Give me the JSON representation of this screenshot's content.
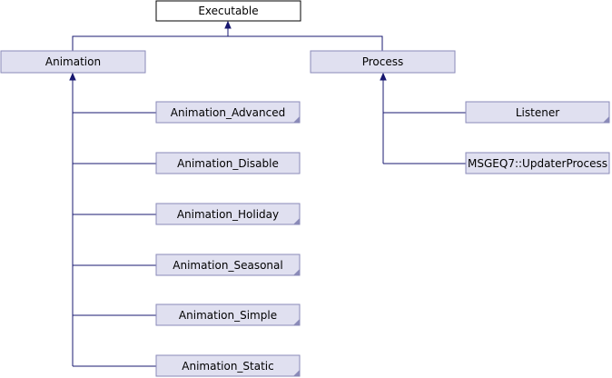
{
  "diagram": {
    "root": {
      "label": "Executable"
    },
    "bases": [
      {
        "label": "Animation"
      },
      {
        "label": "Process"
      }
    ],
    "animation_children": [
      {
        "label": "Animation_Advanced"
      },
      {
        "label": "Animation_Disable"
      },
      {
        "label": "Animation_Holiday"
      },
      {
        "label": "Animation_Seasonal"
      },
      {
        "label": "Animation_Simple"
      },
      {
        "label": "Animation_Static"
      }
    ],
    "process_children": [
      {
        "label": "Listener"
      },
      {
        "label": "MSGEQ7::UpdaterProcess"
      }
    ]
  },
  "colors": {
    "root_fill": "#ffffff",
    "node_fill": "#e0e0f0",
    "node_stroke": "#8a8ab8",
    "edge": "#191970",
    "text": "#000000"
  }
}
